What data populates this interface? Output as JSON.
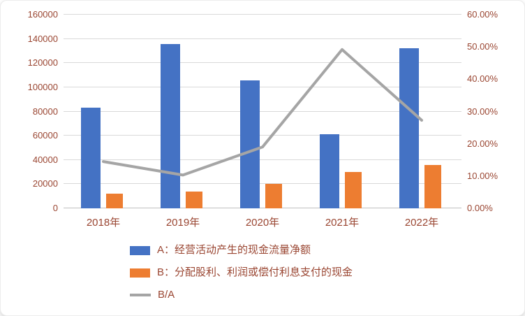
{
  "chart_data": {
    "type": "combo",
    "title": "",
    "text_color": "#9a4632",
    "grid": true,
    "legend_position": "bottom",
    "categories": [
      "2018年",
      "2019年",
      "2020年",
      "2021年",
      "2022年"
    ],
    "series": [
      {
        "name": "A：经营活动产生的现金流量净额",
        "type": "bar",
        "axis": "left",
        "color": "#4472C4",
        "values": [
          83000,
          135500,
          105500,
          61000,
          132000
        ]
      },
      {
        "name": "B：分配股利、利润或偿付利息支付的现金",
        "type": "bar",
        "axis": "left",
        "color": "#ED7D31",
        "values": [
          12000,
          14000,
          20000,
          30000,
          36000
        ]
      },
      {
        "name": "B/A",
        "type": "line",
        "axis": "right",
        "color": "#A5A5A5",
        "values_percent": [
          14.5,
          10.3,
          19.0,
          49.2,
          27.3
        ]
      }
    ],
    "left_axis": {
      "min": 0,
      "max": 160000,
      "step": 20000,
      "tick_labels": [
        "0",
        "20000",
        "40000",
        "60000",
        "80000",
        "100000",
        "120000",
        "140000",
        "160000"
      ]
    },
    "right_axis": {
      "min": 0,
      "max": 60,
      "step": 10,
      "tick_labels": [
        "0.00%",
        "10.00%",
        "20.00%",
        "30.00%",
        "40.00%",
        "50.00%",
        "60.00%"
      ]
    }
  },
  "legend": {
    "items": [
      {
        "label": "A：经营活动产生的现金流量净额",
        "swatch": "bar"
      },
      {
        "label": "B：分配股利、利润或偿付利息支付的现金",
        "swatch": "bar"
      },
      {
        "label": "B/A",
        "swatch": "line"
      }
    ]
  }
}
